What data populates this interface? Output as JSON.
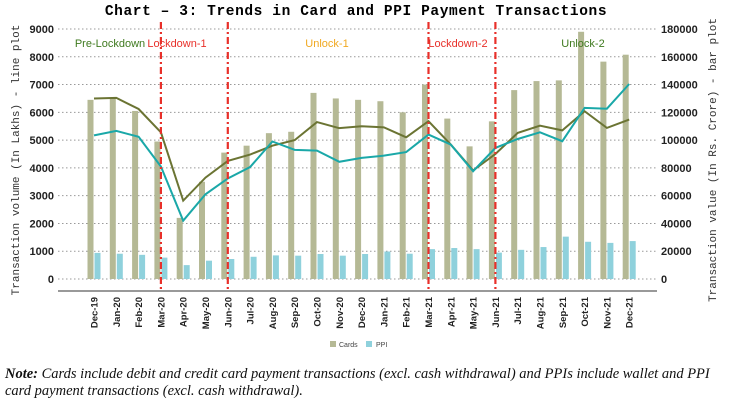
{
  "chart_data": {
    "type": "bar+line",
    "title": "Chart – 3: Trends in Card and PPI Payment Transactions",
    "ylabel_left": "Transaction volume (In Lakhs) - line plot",
    "ylabel_right": "Transaction value (In Rs. Crore) - bar plot",
    "ylim_left": [
      0,
      9000
    ],
    "ylim_right": [
      0,
      180000
    ],
    "yticks_left": [
      "0",
      "1000",
      "2000",
      "3000",
      "4000",
      "5000",
      "6000",
      "7000",
      "8000",
      "9000"
    ],
    "yticks_right": [
      "0",
      "20000",
      "40000",
      "60000",
      "80000",
      "100000",
      "120000",
      "140000",
      "160000",
      "180000"
    ],
    "categories": [
      "Dec-19",
      "Jan-20",
      "Feb-20",
      "Mar-20",
      "Apr-20",
      "May-20",
      "Jun-20",
      "Jul-20",
      "Aug-20",
      "Sep-20",
      "Oct-20",
      "Nov-20",
      "Dec-20",
      "Jan-21",
      "Feb-21",
      "Mar-21",
      "Apr-21",
      "May-21",
      "Jun-21",
      "Jul-21",
      "Aug-21",
      "Sep-21",
      "Oct-21",
      "Nov-21",
      "Dec-21"
    ],
    "bar_series": [
      {
        "name": "Cards",
        "color": "#b5b995",
        "values": [
          129000,
          130000,
          121000,
          99000,
          44000,
          70000,
          91000,
          96000,
          105000,
          106000,
          134000,
          130000,
          129000,
          128000,
          120000,
          140000,
          115500,
          95500,
          113500,
          136000,
          142500,
          143000,
          178000,
          156500,
          161500
        ]
      },
      {
        "name": "PPI",
        "color": "#8fd1dc",
        "values": [
          18800,
          18200,
          17400,
          15400,
          10000,
          13200,
          14400,
          16000,
          17000,
          16800,
          18000,
          16800,
          18000,
          19800,
          18200,
          21500,
          22300,
          21500,
          19000,
          21000,
          23000,
          30500,
          26800,
          26000,
          27300
        ]
      }
    ],
    "line_series": [
      {
        "name": "Cards volume",
        "color": "#6b7433",
        "values": [
          6500,
          6520,
          6120,
          5280,
          2820,
          3650,
          4250,
          4480,
          4800,
          5000,
          5650,
          5430,
          5500,
          5460,
          5100,
          5680,
          4840,
          3910,
          4500,
          5260,
          5520,
          5350,
          6040,
          5440,
          5740
        ]
      },
      {
        "name": "PPI volume",
        "color": "#1aa8a8",
        "values": [
          5170,
          5330,
          5120,
          4050,
          2100,
          3050,
          3620,
          4030,
          4950,
          4650,
          4620,
          4220,
          4360,
          4440,
          4570,
          5200,
          4840,
          3880,
          4720,
          5040,
          5280,
          4960,
          6160,
          6130,
          7020
        ]
      }
    ],
    "phase_dividers": [
      "Mar-20",
      "Jun-20",
      "Mar-21",
      "Jun-21"
    ],
    "phases": [
      {
        "label": "Pre-Lockdown",
        "color": "#3f7a1f"
      },
      {
        "label": "Lockdown-1",
        "color": "#e8302a"
      },
      {
        "label": "Unlock-1",
        "color": "#f0a820"
      },
      {
        "label": "Lockdown-2",
        "color": "#e8302a"
      },
      {
        "label": "Unlock-2",
        "color": "#3f7a1f"
      }
    ],
    "legend": [
      "Cards",
      "PPI"
    ],
    "legend_placement": "bottom-center",
    "grid": true
  },
  "note": {
    "label": "Note:",
    "text": " Cards include debit and credit card payment transactions (excl. cash withdrawal) and PPIs include wallet and PPI card payment transactions (excl. cash withdrawal)."
  }
}
